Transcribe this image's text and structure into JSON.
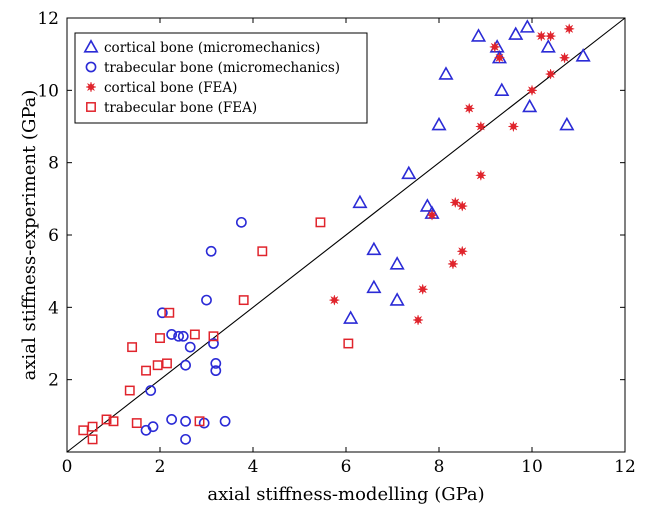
{
  "chart_data": {
    "type": "scatter",
    "title": "",
    "xlabel": "axial stiffness-modelling (GPa)",
    "ylabel": "axial stiffness-experiment (GPa)",
    "xlim": [
      0,
      12
    ],
    "ylim": [
      0,
      12
    ],
    "xticks": [
      0,
      2,
      4,
      6,
      8,
      10,
      12
    ],
    "yticks": [
      2,
      4,
      6,
      8,
      10,
      12
    ],
    "grid": false,
    "legend_position": "top-left",
    "reference_line": {
      "type": "identity",
      "from": [
        0,
        0
      ],
      "to": [
        12,
        12
      ],
      "color": "#000000"
    },
    "series": [
      {
        "name": "cortical bone (micromechanics)",
        "marker": "triangle-open",
        "color": "#2b2bd6",
        "points": [
          [
            6.1,
            3.7
          ],
          [
            6.3,
            6.9
          ],
          [
            6.6,
            5.6
          ],
          [
            6.6,
            4.55
          ],
          [
            7.1,
            5.2
          ],
          [
            7.1,
            4.2
          ],
          [
            7.35,
            7.7
          ],
          [
            7.75,
            6.8
          ],
          [
            7.85,
            6.6
          ],
          [
            8.0,
            9.05
          ],
          [
            8.15,
            10.45
          ],
          [
            8.85,
            11.5
          ],
          [
            9.25,
            11.2
          ],
          [
            9.3,
            10.9
          ],
          [
            9.35,
            10.0
          ],
          [
            9.65,
            11.55
          ],
          [
            9.9,
            11.75
          ],
          [
            9.95,
            9.55
          ],
          [
            10.35,
            11.2
          ],
          [
            10.75,
            9.05
          ],
          [
            11.1,
            10.95
          ]
        ]
      },
      {
        "name": "trabecular bone (micromechanics)",
        "marker": "circle-open",
        "color": "#2b2bd6",
        "points": [
          [
            1.7,
            0.6
          ],
          [
            1.8,
            1.7
          ],
          [
            1.85,
            0.7
          ],
          [
            2.05,
            3.85
          ],
          [
            2.25,
            3.25
          ],
          [
            2.25,
            0.9
          ],
          [
            2.4,
            3.2
          ],
          [
            2.5,
            3.2
          ],
          [
            2.55,
            2.4
          ],
          [
            2.55,
            0.35
          ],
          [
            2.55,
            0.85
          ],
          [
            2.65,
            2.9
          ],
          [
            2.95,
            0.8
          ],
          [
            3.0,
            4.2
          ],
          [
            3.1,
            5.55
          ],
          [
            3.15,
            3.0
          ],
          [
            3.2,
            2.25
          ],
          [
            3.2,
            2.45
          ],
          [
            3.4,
            0.85
          ],
          [
            3.75,
            6.35
          ]
        ]
      },
      {
        "name": "cortical bone (FEA)",
        "marker": "star",
        "color": "#e0242c",
        "points": [
          [
            5.75,
            4.2
          ],
          [
            7.55,
            3.65
          ],
          [
            7.65,
            4.5
          ],
          [
            7.85,
            6.55
          ],
          [
            8.3,
            5.2
          ],
          [
            8.35,
            6.9
          ],
          [
            8.5,
            5.55
          ],
          [
            8.5,
            6.8
          ],
          [
            8.65,
            9.5
          ],
          [
            8.9,
            7.65
          ],
          [
            8.9,
            9.0
          ],
          [
            9.2,
            11.2
          ],
          [
            9.3,
            10.9
          ],
          [
            9.6,
            9.0
          ],
          [
            10.0,
            10.0
          ],
          [
            10.2,
            11.5
          ],
          [
            10.4,
            10.45
          ],
          [
            10.4,
            11.5
          ],
          [
            10.7,
            10.9
          ],
          [
            10.8,
            11.7
          ]
        ]
      },
      {
        "name": "trabecular bone (FEA)",
        "marker": "square-open",
        "color": "#e0242c",
        "points": [
          [
            0.35,
            0.6
          ],
          [
            0.55,
            0.35
          ],
          [
            0.55,
            0.7
          ],
          [
            0.85,
            0.9
          ],
          [
            1.0,
            0.85
          ],
          [
            1.35,
            1.7
          ],
          [
            1.4,
            2.9
          ],
          [
            1.5,
            0.8
          ],
          [
            1.7,
            2.25
          ],
          [
            1.95,
            2.4
          ],
          [
            2.0,
            3.15
          ],
          [
            2.15,
            2.45
          ],
          [
            2.2,
            3.85
          ],
          [
            2.75,
            3.25
          ],
          [
            2.85,
            0.85
          ],
          [
            3.15,
            3.2
          ],
          [
            3.8,
            4.2
          ],
          [
            4.2,
            5.55
          ],
          [
            5.45,
            6.35
          ],
          [
            6.05,
            3.0
          ]
        ]
      }
    ]
  }
}
